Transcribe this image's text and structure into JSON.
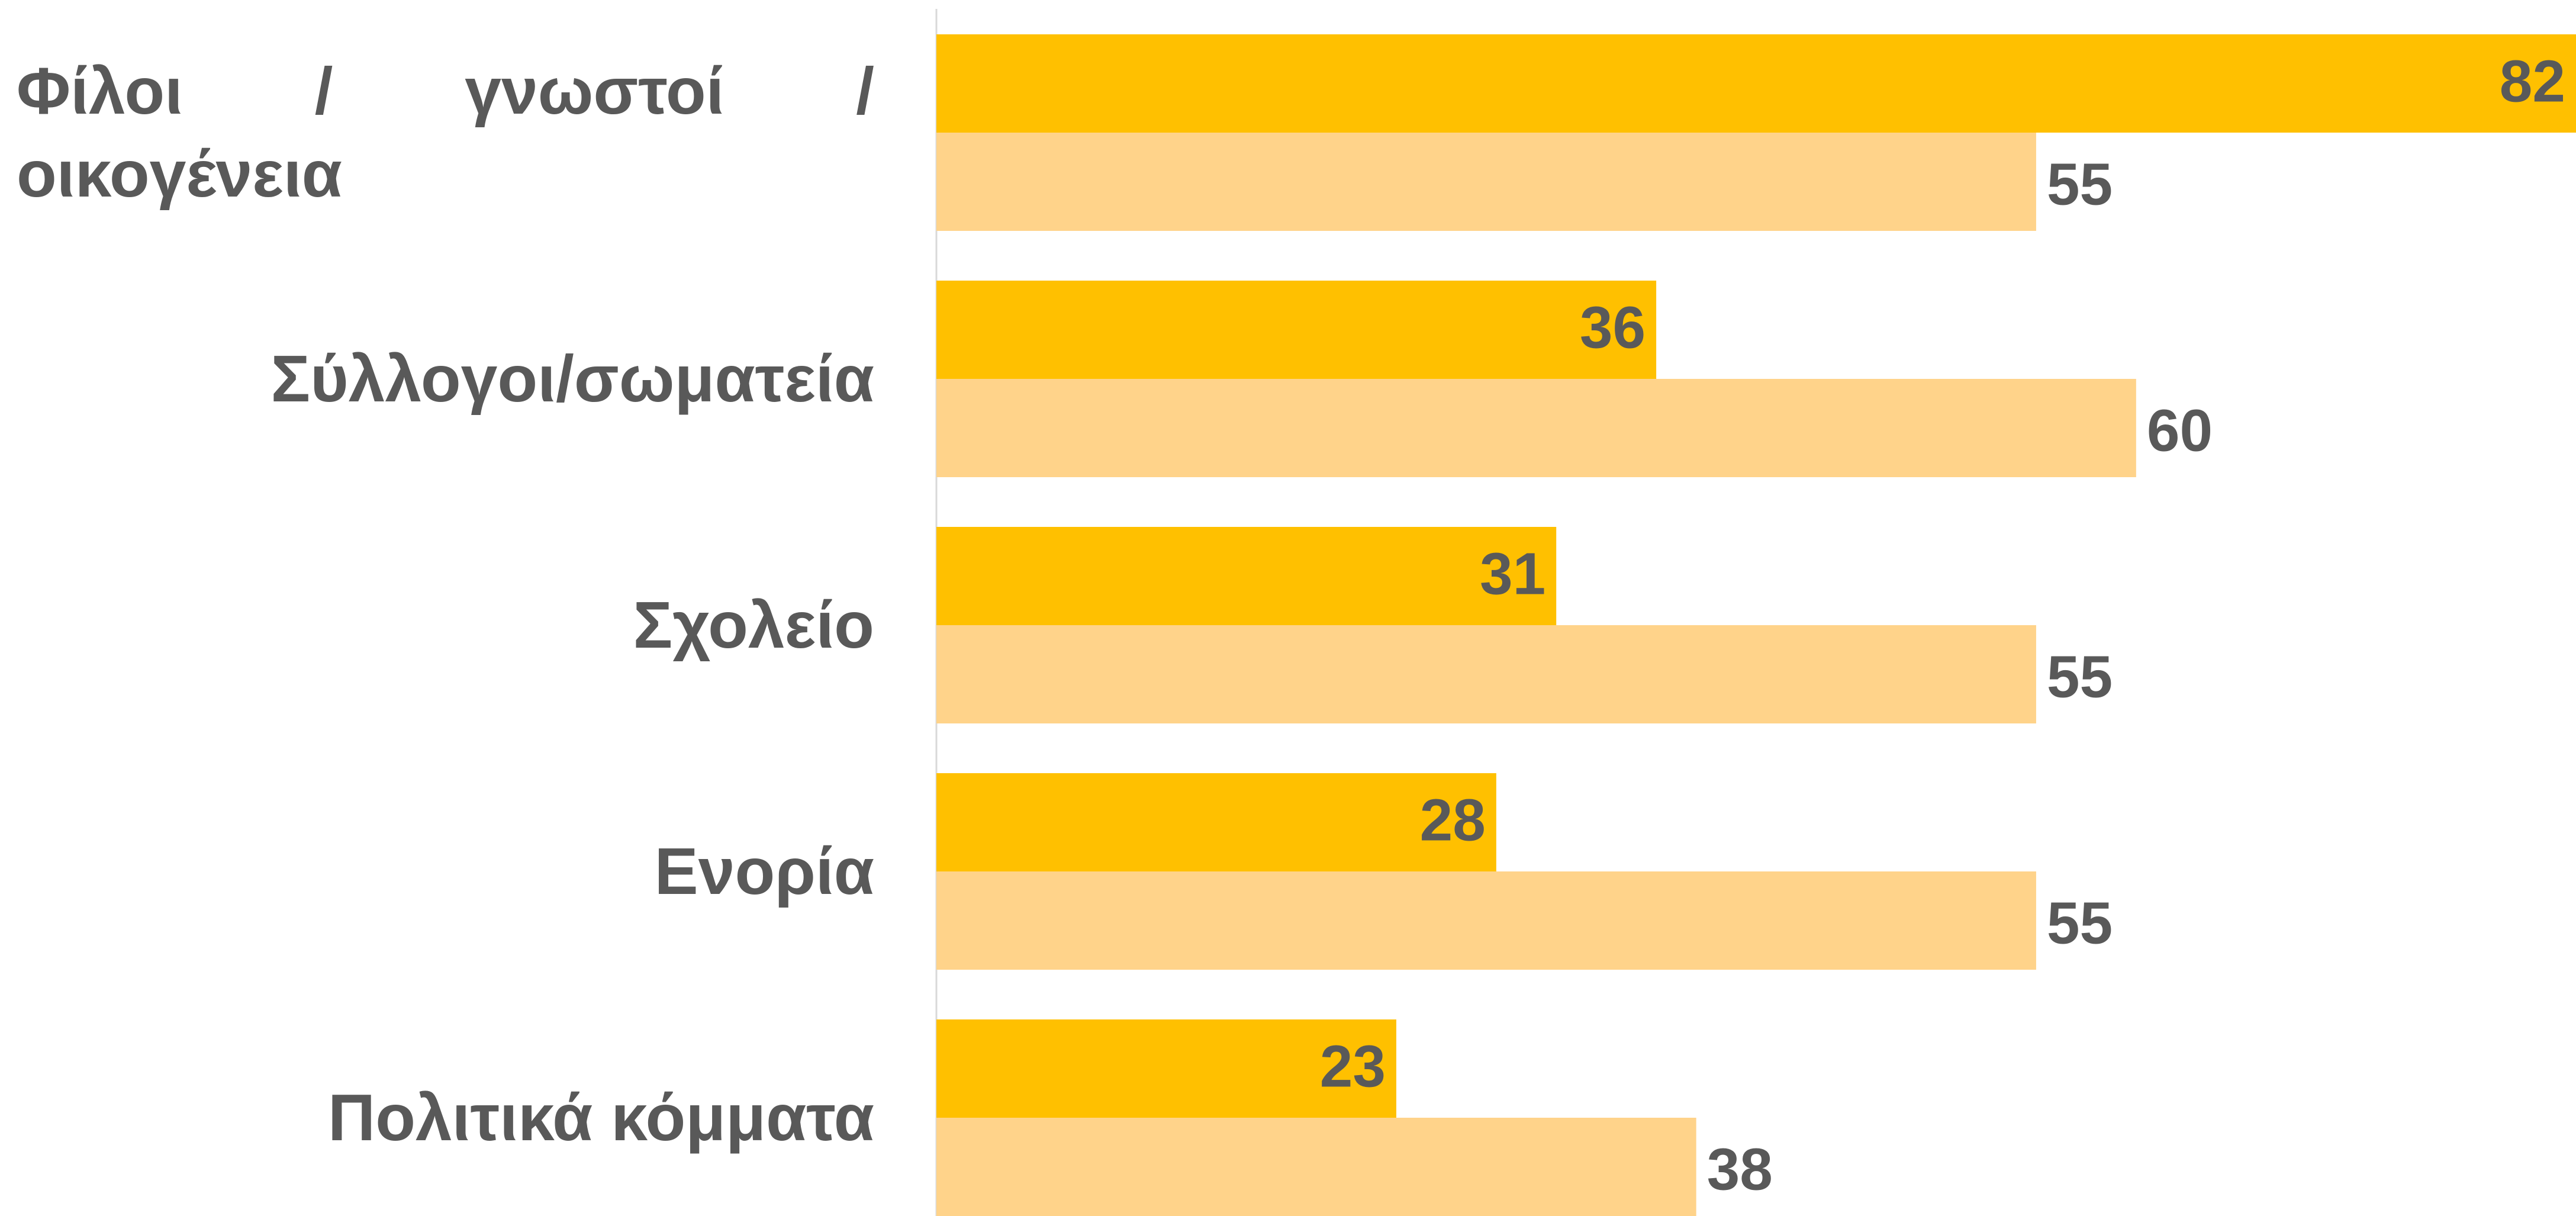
{
  "chart_data": {
    "type": "hbar",
    "categories": [
      "Φίλοι / γνωστοί / οικογένεια",
      "Σύλλογοι/σωματεία",
      "Σχολείο",
      "Ενορία",
      "Πολιτικά κόμματα"
    ],
    "series": [
      {
        "color": "#FFC000",
        "values": [
          82,
          36,
          31,
          28,
          23
        ]
      },
      {
        "color": "#FFD38A",
        "values": [
          55,
          60,
          55,
          55,
          38
        ]
      }
    ]
  }
}
